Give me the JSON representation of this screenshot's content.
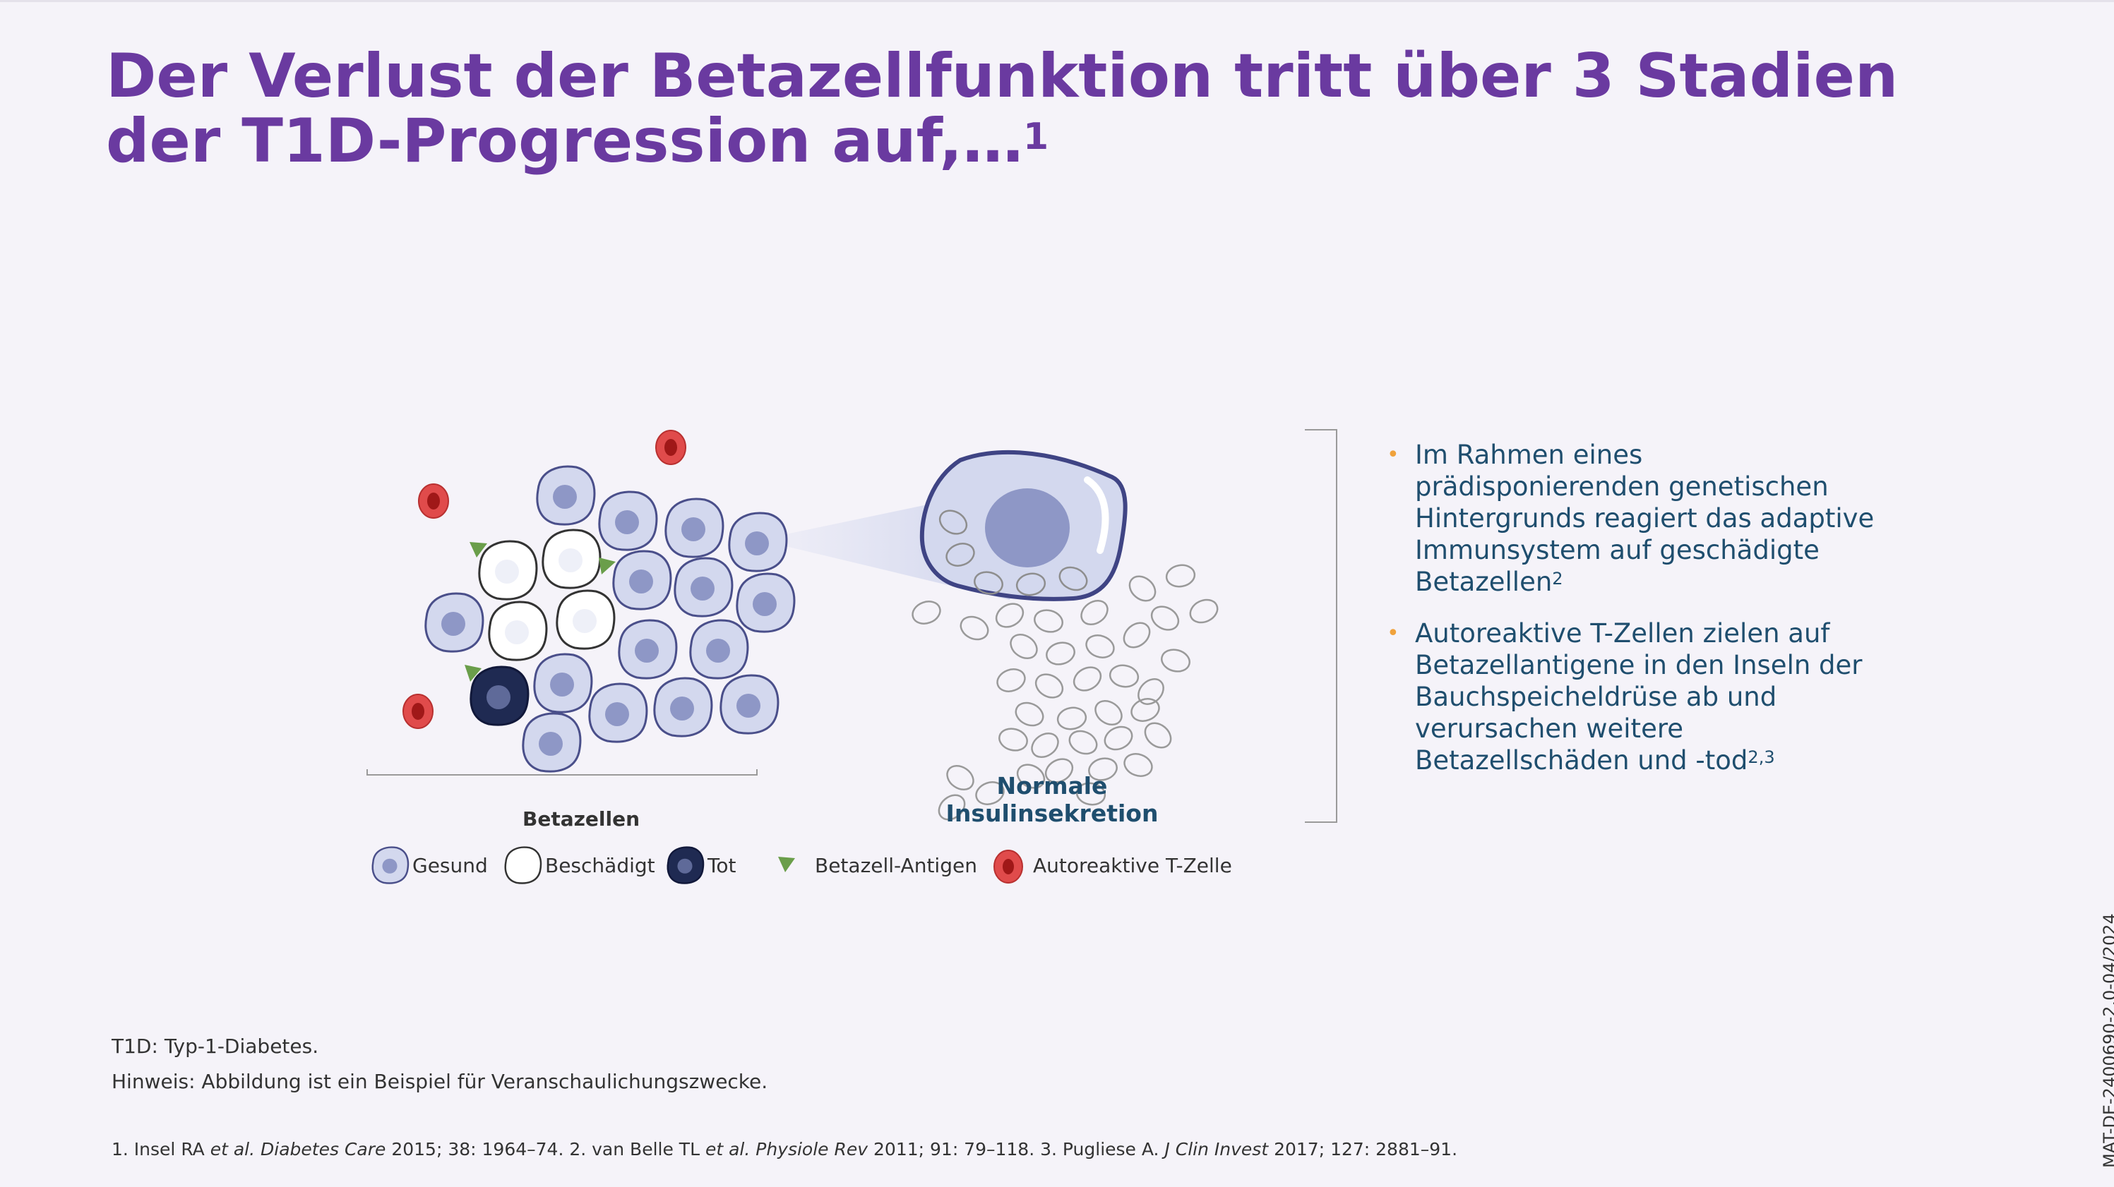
{
  "title": {
    "text": "Der Verlust der Betazellfunktion tritt über 3 Stadien der T1D-Progression auf,…",
    "sup": "1"
  },
  "figure": {
    "beta_cells_label": "Betazellen",
    "normal_label_line1": "Normale",
    "normal_label_line2": "Insulinsekretion",
    "legend": {
      "healthy": "Gesund",
      "damaged": "Beschädigt",
      "dead": "Tot",
      "antigen": "Betazell-Antigen",
      "tcell": "Autoreaktive T-Zelle"
    },
    "colors": {
      "healthy_fill": "#d3d8ee",
      "nucleus": "#8e97c6",
      "outline": "#4a4f8a",
      "dead_fill": "#1f2a52",
      "antigen": "#6a9e4a",
      "tcell": "#e04b4b",
      "tcell_core": "#a01818"
    }
  },
  "bullets": [
    {
      "text": "Im Rahmen eines prädisponierenden genetischen Hintergrunds reagiert das adaptive Immunsystem auf geschädigte Betazellen",
      "sup": "2"
    },
    {
      "text": "Autoreaktive T-Zellen zielen auf Betazellantigene in den Inseln der Bauchspeicheldrüse ab und verursachen weitere Betazellschäden und -tod",
      "sup": "2,3"
    }
  ],
  "footnotes": {
    "abbrev": "T1D: Typ-1-Diabetes.",
    "note": "Hinweis: Abbildung ist ein Beispiel für Veranschaulichungszwecke."
  },
  "references": {
    "r1_pre": "1. Insel RA ",
    "etal": "et al.",
    "r1_journal": "Diabetes Care",
    "r1_post": " 2015; 38: 1964–74. 2. van Belle TL ",
    "r2_journal": "Physiole Rev",
    "r2_post": " 2011; 91: 79–118. 3. Pugliese A. ",
    "r3_journal": "J Clin Invest",
    "r3_post": " 2017; 127: 2881–91."
  },
  "doc_code": "MAT-DE-2400690-2.0-04/2024"
}
